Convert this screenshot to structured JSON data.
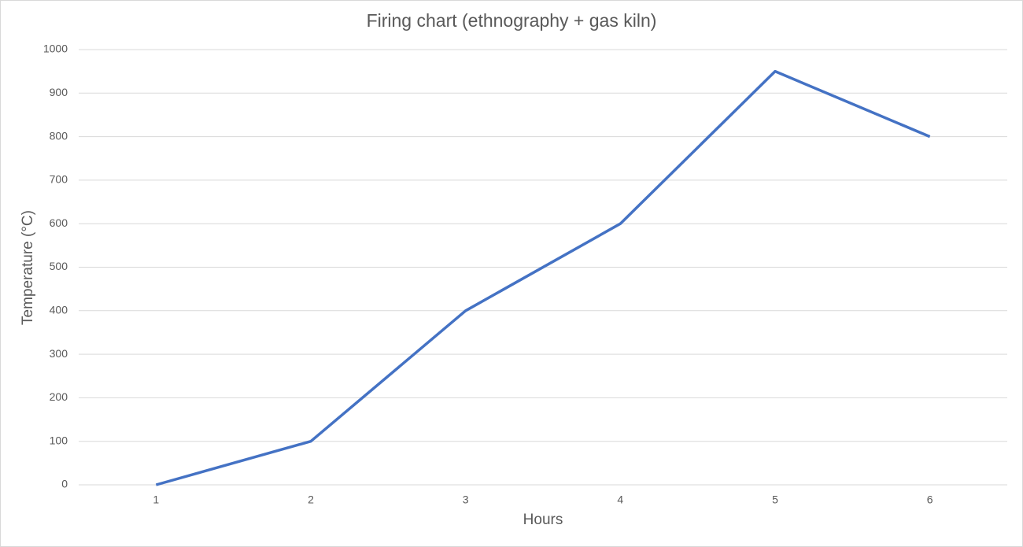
{
  "chart_data": {
    "type": "line",
    "title": "Firing chart (ethnography + gas kiln)",
    "x_label": "Hours",
    "y_label": "Temperature (°C)",
    "categories": [
      "1",
      "2",
      "3",
      "4",
      "5",
      "6"
    ],
    "series": [
      {
        "name": "Temperature",
        "color": "#4472c4",
        "values": [
          0,
          100,
          400,
          600,
          950,
          800
        ]
      }
    ],
    "ylim": [
      0,
      1000
    ],
    "yticks": [
      0,
      100,
      200,
      300,
      400,
      500,
      600,
      700,
      800,
      900,
      1000
    ],
    "grid": true
  }
}
